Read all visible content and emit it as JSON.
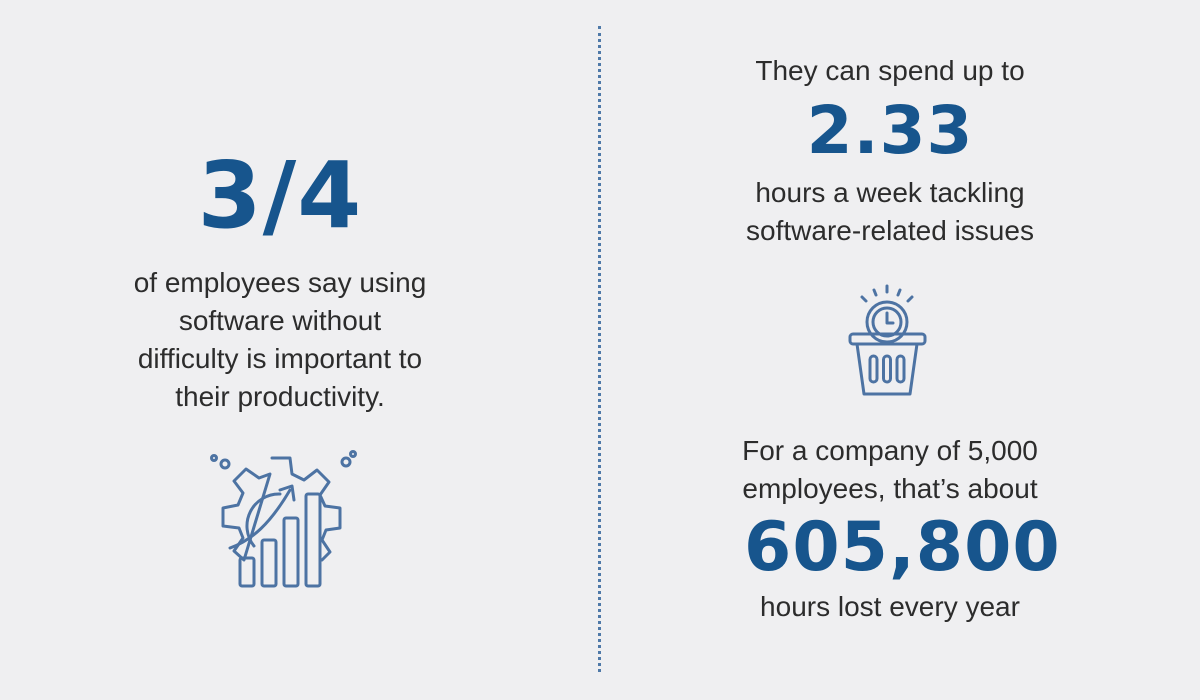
{
  "left": {
    "stat": "3/4",
    "description_lines": [
      "of employees say using",
      "software without",
      "difficulty is important to",
      "their productivity."
    ],
    "icon": "gear-growth-chart-icon"
  },
  "right": {
    "intro": "They can spend up to",
    "stat_hours": "2.33",
    "hours_lines": [
      "hours a week tackling",
      "software-related issues"
    ],
    "icon": "clock-in-basket-icon",
    "company_lines": [
      "For a company of 5,000",
      "employees, that’s about"
    ],
    "stat_total": "605,800",
    "total_caption": "hours lost every year"
  },
  "colors": {
    "background": "#efeff1",
    "accent": "#17558d",
    "icon": "#4d73a3",
    "text": "#2c2c2c"
  }
}
